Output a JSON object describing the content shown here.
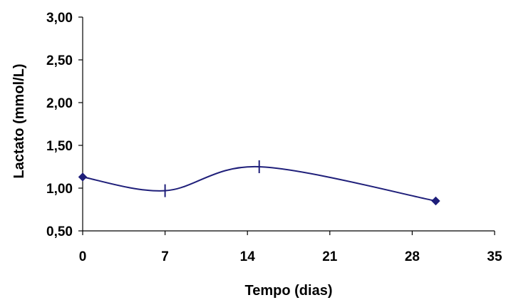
{
  "chart_data": {
    "type": "line",
    "title": "",
    "xlabel": "Tempo (dias)",
    "ylabel": "Lactato (mmol/L)",
    "xlim": [
      0,
      35
    ],
    "ylim": [
      0.5,
      3.0
    ],
    "x_ticks": [
      0,
      7,
      14,
      21,
      28,
      35
    ],
    "x_tick_labels": [
      "0",
      "7",
      "14",
      "21",
      "28",
      "35"
    ],
    "y_ticks": [
      0.5,
      1.0,
      1.5,
      2.0,
      2.5,
      3.0
    ],
    "y_tick_labels": [
      "0,50",
      "1,00",
      "1,50",
      "2,00",
      "2,50",
      "3,00"
    ],
    "grid": false,
    "series": [
      {
        "color": "#1f1f7a",
        "smooth": true,
        "points": [
          {
            "x": 0,
            "y": 1.13,
            "marker": "diamond"
          },
          {
            "x": 7,
            "y": 0.97,
            "marker": "tick"
          },
          {
            "x": 15,
            "y": 1.25,
            "marker": "tick"
          },
          {
            "x": 30,
            "y": 0.85,
            "marker": "diamond"
          }
        ]
      }
    ]
  }
}
